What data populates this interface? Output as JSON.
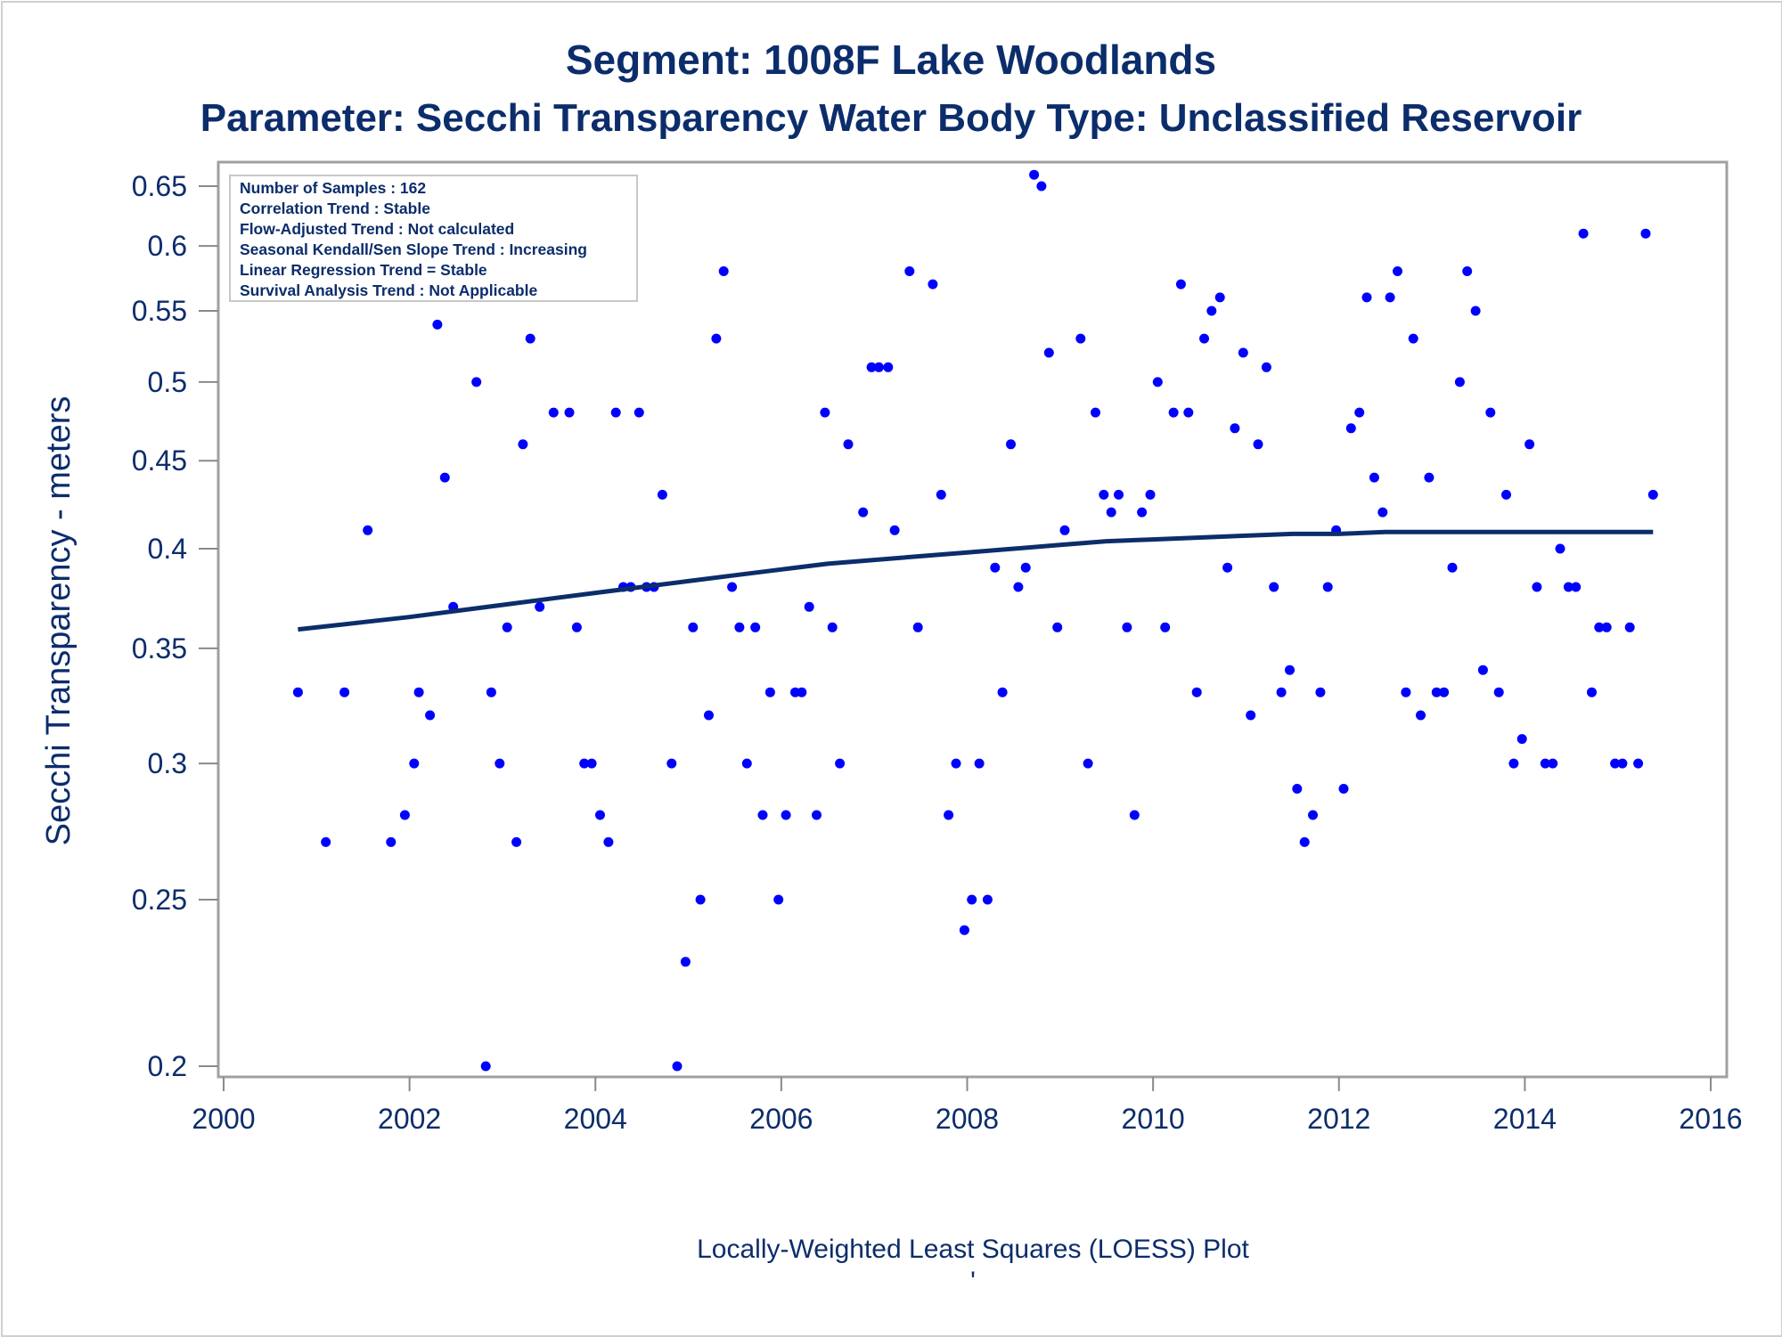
{
  "chart_data": {
    "type": "scatter",
    "title": "Segment: 1008F  Lake Woodlands",
    "subtitle": "Parameter: Secchi Transparency   Water Body Type: Unclassified Reservoir",
    "ylabel": "Secchi Transparency - meters",
    "footnote": "Locally-Weighted Least Squares (LOESS) Plot",
    "footnote_mark": "'",
    "y_scale": "log",
    "xlim": [
      2000,
      2016
    ],
    "ylim": [
      0.197,
      0.665
    ],
    "x_ticks": [
      2000,
      2002,
      2004,
      2006,
      2008,
      2010,
      2012,
      2014,
      2016
    ],
    "x_tick_labels": [
      "2000",
      "2002",
      "2004",
      "2006",
      "2008",
      "2010",
      "2012",
      "2014",
      "2016"
    ],
    "y_ticks": [
      0.2,
      0.25,
      0.3,
      0.35,
      0.4,
      0.45,
      0.5,
      0.55,
      0.6,
      0.65
    ],
    "y_tick_labels": [
      "0.2",
      "0.25",
      "0.3",
      "0.35",
      "0.4",
      "0.45",
      "0.5",
      "0.55",
      "0.6",
      "0.65"
    ],
    "grid": false,
    "legend_position": "top-left",
    "annotations": [
      "Number of Samples : 162",
      "Correlation Trend : Stable",
      "Flow-Adjusted Trend : Not calculated",
      "Seasonal Kendall/Sen Slope Trend : Increasing",
      "Linear Regression Trend = Stable",
      "Survival Analysis Trend : Not Applicable"
    ],
    "colors": {
      "points": "#0000ff",
      "loess": "#0c2d6b",
      "text": "#0c2d6b",
      "frame": "#a0a0a0"
    },
    "series": [
      {
        "type": "scatter",
        "points": [
          [
            2000.8,
            0.33
          ],
          [
            2001.1,
            0.27
          ],
          [
            2001.3,
            0.33
          ],
          [
            2001.55,
            0.41
          ],
          [
            2001.8,
            0.27
          ],
          [
            2001.95,
            0.28
          ],
          [
            2002.05,
            0.3
          ],
          [
            2002.1,
            0.33
          ],
          [
            2002.22,
            0.32
          ],
          [
            2002.3,
            0.54
          ],
          [
            2002.38,
            0.44
          ],
          [
            2002.47,
            0.37
          ],
          [
            2002.56,
            0.6
          ],
          [
            2002.72,
            0.5
          ],
          [
            2002.82,
            0.2
          ],
          [
            2002.88,
            0.33
          ],
          [
            2002.97,
            0.3
          ],
          [
            2003.05,
            0.36
          ],
          [
            2003.15,
            0.27
          ],
          [
            2003.22,
            0.46
          ],
          [
            2003.3,
            0.53
          ],
          [
            2003.4,
            0.37
          ],
          [
            2003.47,
            0.65
          ],
          [
            2003.55,
            0.48
          ],
          [
            2003.65,
            0.6
          ],
          [
            2003.72,
            0.48
          ],
          [
            2003.8,
            0.36
          ],
          [
            2003.88,
            0.3
          ],
          [
            2003.96,
            0.3
          ],
          [
            2004.05,
            0.28
          ],
          [
            2004.14,
            0.27
          ],
          [
            2004.22,
            0.48
          ],
          [
            2004.3,
            0.38
          ],
          [
            2004.38,
            0.38
          ],
          [
            2004.47,
            0.48
          ],
          [
            2004.55,
            0.38
          ],
          [
            2004.63,
            0.38
          ],
          [
            2004.72,
            0.43
          ],
          [
            2004.82,
            0.3
          ],
          [
            2004.88,
            0.2
          ],
          [
            2004.97,
            0.23
          ],
          [
            2005.05,
            0.36
          ],
          [
            2005.13,
            0.25
          ],
          [
            2005.22,
            0.32
          ],
          [
            2005.3,
            0.53
          ],
          [
            2005.38,
            0.58
          ],
          [
            2005.47,
            0.38
          ],
          [
            2005.55,
            0.36
          ],
          [
            2005.63,
            0.3
          ],
          [
            2005.72,
            0.36
          ],
          [
            2005.8,
            0.28
          ],
          [
            2005.88,
            0.33
          ],
          [
            2005.97,
            0.25
          ],
          [
            2006.05,
            0.28
          ],
          [
            2006.15,
            0.33
          ],
          [
            2006.22,
            0.33
          ],
          [
            2006.3,
            0.37
          ],
          [
            2006.38,
            0.28
          ],
          [
            2006.47,
            0.48
          ],
          [
            2006.55,
            0.36
          ],
          [
            2006.63,
            0.3
          ],
          [
            2006.72,
            0.46
          ],
          [
            2006.88,
            0.42
          ],
          [
            2006.97,
            0.51
          ],
          [
            2007.05,
            0.51
          ],
          [
            2007.15,
            0.51
          ],
          [
            2007.22,
            0.41
          ],
          [
            2007.38,
            0.58
          ],
          [
            2007.47,
            0.36
          ],
          [
            2007.63,
            0.57
          ],
          [
            2007.72,
            0.43
          ],
          [
            2007.8,
            0.28
          ],
          [
            2007.88,
            0.3
          ],
          [
            2007.97,
            0.24
          ],
          [
            2008.05,
            0.25
          ],
          [
            2008.13,
            0.3
          ],
          [
            2008.22,
            0.25
          ],
          [
            2008.3,
            0.39
          ],
          [
            2008.38,
            0.33
          ],
          [
            2008.47,
            0.46
          ],
          [
            2008.55,
            0.38
          ],
          [
            2008.63,
            0.39
          ],
          [
            2008.72,
            0.66
          ],
          [
            2008.8,
            0.65
          ],
          [
            2008.88,
            0.52
          ],
          [
            2008.97,
            0.36
          ],
          [
            2009.05,
            0.41
          ],
          [
            2009.22,
            0.53
          ],
          [
            2009.3,
            0.3
          ],
          [
            2009.38,
            0.48
          ],
          [
            2009.47,
            0.43
          ],
          [
            2009.55,
            0.42
          ],
          [
            2009.63,
            0.43
          ],
          [
            2009.72,
            0.36
          ],
          [
            2009.8,
            0.28
          ],
          [
            2009.88,
            0.42
          ],
          [
            2009.97,
            0.43
          ],
          [
            2010.05,
            0.5
          ],
          [
            2010.13,
            0.36
          ],
          [
            2010.22,
            0.48
          ],
          [
            2010.3,
            0.57
          ],
          [
            2010.38,
            0.48
          ],
          [
            2010.47,
            0.33
          ],
          [
            2010.55,
            0.53
          ],
          [
            2010.63,
            0.55
          ],
          [
            2010.72,
            0.56
          ],
          [
            2010.8,
            0.39
          ],
          [
            2010.88,
            0.47
          ],
          [
            2010.97,
            0.52
          ],
          [
            2011.05,
            0.32
          ],
          [
            2011.13,
            0.46
          ],
          [
            2011.22,
            0.51
          ],
          [
            2011.3,
            0.38
          ],
          [
            2011.38,
            0.33
          ],
          [
            2011.47,
            0.34
          ],
          [
            2011.55,
            0.29
          ],
          [
            2011.63,
            0.27
          ],
          [
            2011.72,
            0.28
          ],
          [
            2011.8,
            0.33
          ],
          [
            2011.88,
            0.38
          ],
          [
            2011.97,
            0.41
          ],
          [
            2012.05,
            0.29
          ],
          [
            2012.13,
            0.47
          ],
          [
            2012.22,
            0.48
          ],
          [
            2012.3,
            0.56
          ],
          [
            2012.38,
            0.44
          ],
          [
            2012.47,
            0.42
          ],
          [
            2012.55,
            0.56
          ],
          [
            2012.63,
            0.58
          ],
          [
            2012.72,
            0.33
          ],
          [
            2012.8,
            0.53
          ],
          [
            2012.88,
            0.32
          ],
          [
            2012.97,
            0.44
          ],
          [
            2013.05,
            0.33
          ],
          [
            2013.13,
            0.33
          ],
          [
            2013.22,
            0.39
          ],
          [
            2013.3,
            0.5
          ],
          [
            2013.38,
            0.58
          ],
          [
            2013.47,
            0.55
          ],
          [
            2013.55,
            0.34
          ],
          [
            2013.63,
            0.48
          ],
          [
            2013.72,
            0.33
          ],
          [
            2013.8,
            0.43
          ],
          [
            2013.88,
            0.3
          ],
          [
            2013.97,
            0.31
          ],
          [
            2014.05,
            0.46
          ],
          [
            2014.13,
            0.38
          ],
          [
            2014.22,
            0.3
          ],
          [
            2014.3,
            0.3
          ],
          [
            2014.38,
            0.4
          ],
          [
            2014.47,
            0.38
          ],
          [
            2014.55,
            0.38
          ],
          [
            2014.63,
            0.61
          ],
          [
            2014.72,
            0.33
          ],
          [
            2014.8,
            0.36
          ],
          [
            2014.88,
            0.36
          ],
          [
            2014.97,
            0.3
          ],
          [
            2015.05,
            0.3
          ],
          [
            2015.13,
            0.36
          ],
          [
            2015.22,
            0.3
          ],
          [
            2015.3,
            0.61
          ],
          [
            2015.38,
            0.43
          ]
        ]
      },
      {
        "type": "line",
        "points": [
          [
            2000.8,
            0.359
          ],
          [
            2001.2,
            0.361
          ],
          [
            2001.6,
            0.363
          ],
          [
            2002.0,
            0.365
          ],
          [
            2002.5,
            0.368
          ],
          [
            2003.0,
            0.371
          ],
          [
            2003.5,
            0.374
          ],
          [
            2004.0,
            0.377
          ],
          [
            2004.5,
            0.38
          ],
          [
            2005.0,
            0.383
          ],
          [
            2005.5,
            0.386
          ],
          [
            2006.0,
            0.389
          ],
          [
            2006.5,
            0.392
          ],
          [
            2007.0,
            0.394
          ],
          [
            2007.5,
            0.396
          ],
          [
            2008.0,
            0.398
          ],
          [
            2008.5,
            0.4
          ],
          [
            2009.0,
            0.402
          ],
          [
            2009.5,
            0.404
          ],
          [
            2010.0,
            0.405
          ],
          [
            2010.5,
            0.406
          ],
          [
            2011.0,
            0.407
          ],
          [
            2011.5,
            0.408
          ],
          [
            2012.0,
            0.408
          ],
          [
            2012.5,
            0.409
          ],
          [
            2013.0,
            0.409
          ],
          [
            2013.5,
            0.409
          ],
          [
            2014.0,
            0.409
          ],
          [
            2014.5,
            0.409
          ],
          [
            2015.0,
            0.409
          ],
          [
            2015.38,
            0.409
          ]
        ]
      }
    ]
  }
}
